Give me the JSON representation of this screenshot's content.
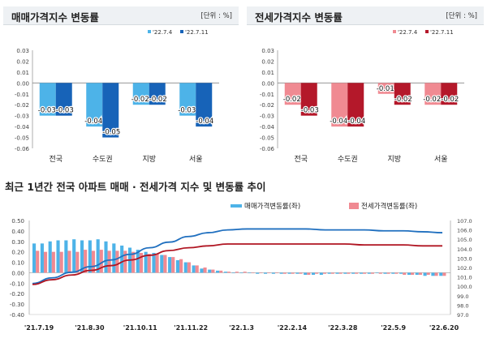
{
  "sale_panel": {
    "title": "매매가격지수 변동률",
    "unit": "[단위 : %]"
  },
  "jeonse_panel": {
    "title": "전세가격지수 변동률",
    "unit": "[단위 : %]"
  },
  "trend_panel": {
    "title": "최근 1년간 전국 아파트 매매 · 전세가격 지수 및 변동률 추이",
    "legend": [
      "매매가격변동률(좌)",
      "전세가격변동률(좌)"
    ]
  },
  "colors": {
    "sale_light": "#4db3e8",
    "sale_dark": "#1763b8",
    "jeonse_light": "#f08a92",
    "jeonse_dark": "#b4182a",
    "sale_line": "#1f6fbf",
    "jeonse_line": "#b01522"
  },
  "chart_data": [
    {
      "type": "bar",
      "categories": [
        "전국",
        "수도권",
        "지방",
        "서울"
      ],
      "series": [
        {
          "name": "'22.7.4",
          "values": [
            -0.03,
            -0.04,
            -0.02,
            -0.03
          ]
        },
        {
          "name": "'22.7.11",
          "values": [
            -0.03,
            -0.05,
            -0.02,
            -0.04
          ]
        }
      ],
      "ylim": [
        -0.06,
        0.03
      ],
      "yticks": [
        "0.03",
        "0.02",
        "0.01",
        "0.00",
        "-0.01",
        "-0.02",
        "-0.03",
        "-0.04",
        "-0.05",
        "-0.06"
      ],
      "data_labels": [
        [
          "-0.03",
          "-0.04",
          "-0.02",
          "-0.03"
        ],
        [
          "-0.03",
          "-0.05",
          "-0.02",
          "-0.04"
        ]
      ]
    },
    {
      "type": "bar",
      "categories": [
        "전국",
        "수도권",
        "지방",
        "서울"
      ],
      "series": [
        {
          "name": "'22.7.4",
          "values": [
            -0.02,
            -0.04,
            -0.01,
            -0.02
          ]
        },
        {
          "name": "'22.7.11",
          "values": [
            -0.03,
            -0.04,
            -0.02,
            -0.02
          ]
        }
      ],
      "ylim": [
        -0.06,
        0.03
      ],
      "yticks": [
        "0.03",
        "0.02",
        "0.01",
        "0.00",
        "-0.01",
        "-0.02",
        "-0.03",
        "-0.04",
        "-0.05",
        "-0.06"
      ],
      "data_labels": [
        [
          "-0.02",
          "-0.04",
          "-0.01",
          "-0.02"
        ],
        [
          "-0.03",
          "-0.04",
          "-0.02",
          "-0.02"
        ]
      ]
    },
    {
      "type": "bar",
      "x_labels": [
        "'21.7.19",
        "'21.8.30",
        "'21.10.11",
        "'21.11.22",
        "'22.1.3",
        "'22.2.14",
        "'22.3.28",
        "'22.5.9",
        "'22.6.20"
      ],
      "ylim_left": [
        -0.4,
        0.5
      ],
      "yticks_left": [
        "0.50",
        "0.40",
        "0.30",
        "0.20",
        "0.10",
        "0.00",
        "-0.10",
        "-0.20",
        "-0.30",
        "-0.40"
      ],
      "ylim_right": [
        97.0,
        107.0
      ],
      "yticks_right": [
        "107.0",
        "106.0",
        "105.0",
        "104.0",
        "103.0",
        "102.0",
        "101.0",
        "100.0",
        "99.0",
        "98.0",
        "97.0"
      ],
      "series": [
        {
          "name": "매매가격변동률(좌)",
          "type": "bar",
          "values": [
            0.28,
            0.28,
            0.3,
            0.31,
            0.31,
            0.32,
            0.31,
            0.31,
            0.32,
            0.3,
            0.28,
            0.26,
            0.24,
            0.22,
            0.2,
            0.19,
            0.17,
            0.15,
            0.12,
            0.1,
            0.07,
            0.04,
            0.03,
            0.02,
            0.01,
            0.0,
            0.0,
            0.0,
            -0.01,
            -0.01,
            -0.01,
            -0.01,
            -0.01,
            -0.01,
            -0.02,
            -0.02,
            -0.02,
            -0.01,
            -0.01,
            -0.01,
            -0.01,
            -0.01,
            -0.01,
            0.0,
            -0.01,
            -0.01,
            -0.01,
            -0.02,
            -0.02,
            -0.03,
            -0.03,
            -0.03
          ]
        },
        {
          "name": "전세가격변동률(좌)",
          "type": "bar",
          "values": [
            0.21,
            0.2,
            0.2,
            0.2,
            0.21,
            0.2,
            0.22,
            0.21,
            0.22,
            0.21,
            0.21,
            0.21,
            0.2,
            0.19,
            0.18,
            0.18,
            0.17,
            0.15,
            0.13,
            0.1,
            0.07,
            0.05,
            0.03,
            0.02,
            0.01,
            0.01,
            0.01,
            0.0,
            0.0,
            0.0,
            0.0,
            -0.01,
            -0.01,
            -0.01,
            -0.02,
            -0.01,
            -0.01,
            -0.01,
            -0.01,
            -0.01,
            -0.01,
            -0.01,
            -0.01,
            -0.01,
            -0.01,
            -0.01,
            -0.02,
            -0.02,
            -0.02,
            -0.02,
            -0.03,
            -0.03
          ]
        },
        {
          "name": "매매가격지수(우)",
          "type": "line",
          "values": [
            100.3,
            100.9,
            101.5,
            102.1,
            102.8,
            103.4,
            104.1,
            104.7,
            105.3,
            105.7,
            106.0,
            106.1,
            106.1,
            106.1,
            106.1,
            106.0,
            106.0,
            106.0,
            105.9,
            105.9,
            105.8,
            105.7
          ]
        },
        {
          "name": "전세가격지수(우)",
          "type": "line",
          "values": [
            100.2,
            100.7,
            101.2,
            101.7,
            102.2,
            102.8,
            103.3,
            103.8,
            104.1,
            104.3,
            104.5,
            104.5,
            104.5,
            104.5,
            104.5,
            104.5,
            104.5,
            104.4,
            104.4,
            104.4,
            104.3,
            104.3
          ]
        }
      ]
    }
  ]
}
